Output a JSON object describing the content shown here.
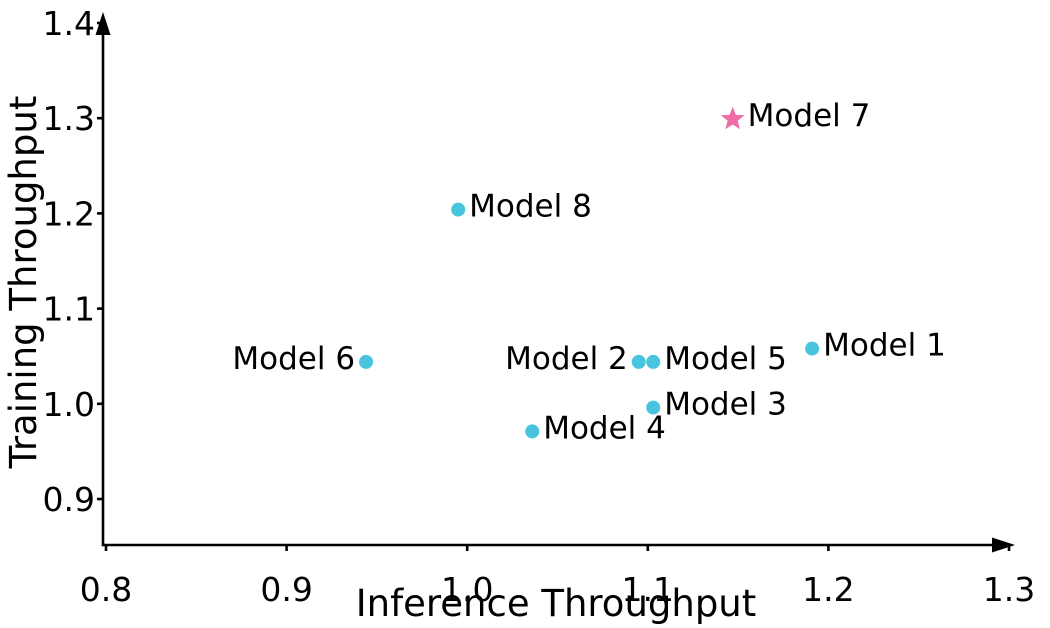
{
  "figure": {
    "background": "#ffffff",
    "axis_color": "#000000"
  },
  "chart_data": {
    "type": "scatter",
    "title": "",
    "xlabel": "Inference Throughput",
    "ylabel": "Training Throughput",
    "xlim": [
      0.8,
      1.3
    ],
    "ylim": [
      0.85,
      1.4
    ],
    "grid": false,
    "legend": "none",
    "x_ticks": [
      {
        "value": 0.8,
        "label": "0.8"
      },
      {
        "value": 0.9,
        "label": "0.9"
      },
      {
        "value": 1.0,
        "label": "1.0"
      },
      {
        "value": 1.1,
        "label": "1.1"
      },
      {
        "value": 1.2,
        "label": "1.2"
      },
      {
        "value": 1.3,
        "label": "1.3"
      }
    ],
    "y_ticks": [
      {
        "value": 0.9,
        "label": "0.9"
      },
      {
        "value": 1.0,
        "label": "1.0"
      },
      {
        "value": 1.1,
        "label": "1.1"
      },
      {
        "value": 1.2,
        "label": "1.2"
      },
      {
        "value": 1.3,
        "label": "1.3"
      },
      {
        "value": 1.4,
        "label": "1.4"
      }
    ],
    "series": [
      {
        "name": "models",
        "marker": "circle",
        "color": "#49C4DF",
        "points": [
          {
            "label": "Model 1",
            "x": 1.191,
            "y": 1.058,
            "label_side": "right"
          },
          {
            "label": "Model 2",
            "x": 1.095,
            "y": 1.044,
            "label_side": "left"
          },
          {
            "label": "Model 3",
            "x": 1.103,
            "y": 0.996,
            "label_side": "right"
          },
          {
            "label": "Model 4",
            "x": 1.036,
            "y": 0.971,
            "label_side": "right"
          },
          {
            "label": "Model 5",
            "x": 1.103,
            "y": 1.044,
            "label_side": "right"
          },
          {
            "label": "Model 6",
            "x": 0.944,
            "y": 1.044,
            "label_side": "left"
          },
          {
            "label": "Model 8",
            "x": 0.995,
            "y": 1.204,
            "label_side": "right"
          }
        ]
      },
      {
        "name": "highlighted-model",
        "marker": "star",
        "color": "#F06CA8",
        "points": [
          {
            "label": "Model 7",
            "x": 1.147,
            "y": 1.299,
            "label_side": "right"
          }
        ]
      }
    ]
  }
}
